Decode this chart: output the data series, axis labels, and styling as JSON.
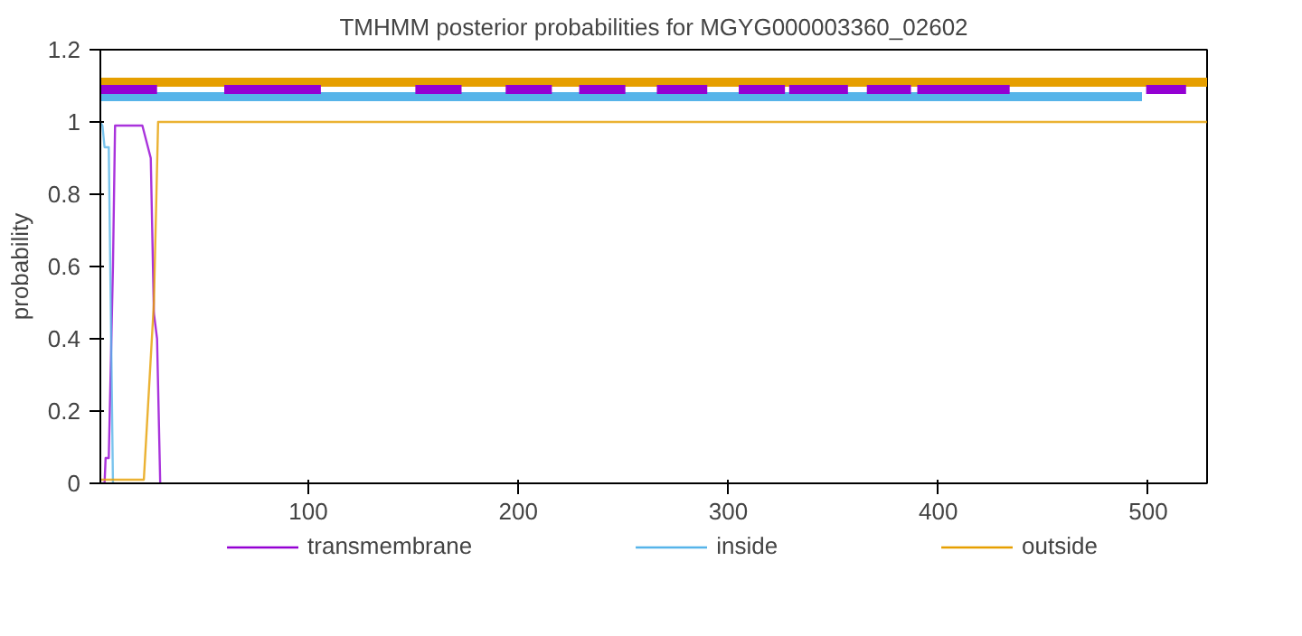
{
  "chart_data": {
    "type": "line",
    "title": "TMHMM posterior probabilities for MGYG000003360_02602",
    "ylabel": "probability",
    "xlim": [
      1,
      528
    ],
    "ylim": [
      0,
      1.2
    ],
    "xticks": [
      100,
      200,
      300,
      400,
      500
    ],
    "yticks": [
      0,
      0.2,
      0.4,
      0.6,
      0.8,
      1,
      1.2
    ],
    "grid": false,
    "legend": "bottom",
    "marker": "none",
    "line_style": "solid",
    "series": [
      {
        "name": "transmembrane",
        "color": "#9400d3",
        "x": [
          1,
          3,
          3.5,
          5,
          7,
          8,
          12,
          16,
          21,
          25,
          26.5,
          28,
          29.5
        ],
        "values": [
          0,
          0,
          0.07,
          0.07,
          0.6,
          0.99,
          0.99,
          0.99,
          0.99,
          0.9,
          0.47,
          0.4,
          0
        ]
      },
      {
        "name": "inside",
        "color": "#56b4e9",
        "x": [
          1,
          2,
          3,
          5,
          7
        ],
        "values": [
          1,
          0.99,
          0.93,
          0.93,
          0
        ]
      },
      {
        "name": "outside",
        "color": "#e69f00",
        "x": [
          1,
          10,
          21.7,
          26.5,
          28.5,
          40,
          100,
          200,
          300,
          400,
          500,
          528
        ],
        "values": [
          0.01,
          0.01,
          0.01,
          0.5,
          1,
          1,
          1,
          1,
          1,
          1,
          1,
          1
        ]
      },
      {
        "color": "#e69f00",
        "x": [
          1,
          528
        ],
        "values": [
          1.11,
          1.11
        ]
      },
      {
        "color": "#56b4e9",
        "x": [
          1,
          497
        ],
        "values": [
          1.07,
          1.07
        ]
      },
      {
        "color": "#9400d3",
        "x": [
          1,
          28,
          44,
          60,
          83,
          84,
          106,
          128,
          151,
          173,
          184,
          194,
          216,
          222,
          229,
          251,
          258,
          266,
          290,
          298,
          305,
          327,
          328,
          329,
          357,
          361,
          366,
          387,
          388,
          390,
          434,
          466,
          499,
          518
        ],
        "values": [
          1.09,
          1.09,
          null,
          1.09,
          1.09,
          1.09,
          1.09,
          null,
          1.09,
          1.09,
          null,
          1.09,
          1.09,
          null,
          1.09,
          1.09,
          null,
          1.09,
          1.09,
          null,
          1.09,
          1.09,
          null,
          1.09,
          1.09,
          null,
          1.09,
          1.09,
          null,
          1.09,
          1.09,
          null,
          1.09,
          1.09
        ]
      }
    ]
  }
}
